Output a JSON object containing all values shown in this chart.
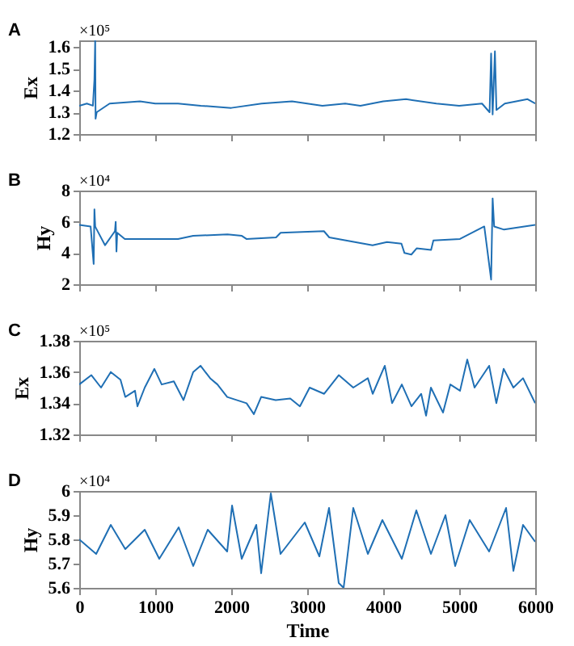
{
  "chart_data": [
    {
      "type": "line",
      "title": "A",
      "ylabel": "Ex",
      "annotations": [
        "×10⁵"
      ],
      "xlim": [
        0,
        6000
      ],
      "xticks": [
        0,
        1000,
        2000,
        3000,
        4000,
        5000,
        6000
      ],
      "ylim": [
        1.2,
        1.63
      ],
      "yticks": [
        1.2,
        1.3,
        1.4,
        1.5,
        1.6
      ],
      "grid": false,
      "legend": false,
      "tick_labels": "y",
      "x": [
        0,
        100,
        180,
        200,
        210,
        215,
        230,
        400,
        800,
        1000,
        1300,
        1600,
        2000,
        2400,
        2800,
        3200,
        3500,
        3700,
        4000,
        4300,
        4700,
        5000,
        5300,
        5400,
        5420,
        5440,
        5470,
        5490,
        5600,
        5900,
        6000
      ],
      "series": [
        {
          "color": "#1f6fb4",
          "values": [
            1.33,
            1.34,
            1.33,
            1.45,
            1.63,
            1.27,
            1.3,
            1.34,
            1.35,
            1.34,
            1.34,
            1.33,
            1.32,
            1.34,
            1.35,
            1.33,
            1.34,
            1.33,
            1.35,
            1.36,
            1.34,
            1.33,
            1.34,
            1.3,
            1.57,
            1.29,
            1.58,
            1.31,
            1.34,
            1.36,
            1.34
          ]
        }
      ]
    },
    {
      "type": "line",
      "title": "B",
      "ylabel": "Hy",
      "annotations": [
        "×10⁴"
      ],
      "xlim": [
        0,
        6000
      ],
      "xticks": [
        0,
        1000,
        2000,
        3000,
        4000,
        5000,
        6000
      ],
      "ylim": [
        2,
        8
      ],
      "yticks": [
        2,
        4,
        6,
        8
      ],
      "grid": false,
      "legend": false,
      "tick_labels": "y",
      "x": [
        0,
        150,
        190,
        200,
        210,
        220,
        340,
        470,
        480,
        490,
        500,
        600,
        1300,
        1500,
        1950,
        2140,
        2200,
        2590,
        2650,
        3220,
        3290,
        3860,
        4050,
        4240,
        4280,
        4370,
        4440,
        4630,
        4660,
        5010,
        5330,
        5420,
        5440,
        5460,
        5590,
        6000
      ],
      "series": [
        {
          "color": "#1f6fb4",
          "values": [
            5.8,
            5.7,
            3.3,
            6.8,
            5.7,
            5.6,
            4.5,
            5.4,
            6.0,
            4.1,
            5.3,
            4.9,
            4.9,
            5.1,
            5.2,
            5.1,
            4.9,
            5.0,
            5.3,
            5.4,
            5.0,
            4.5,
            4.7,
            4.6,
            4.0,
            3.9,
            4.3,
            4.2,
            4.8,
            4.9,
            5.7,
            2.3,
            7.5,
            5.7,
            5.5,
            5.8
          ]
        }
      ]
    },
    {
      "type": "line",
      "title": "C",
      "ylabel": "Ex",
      "annotations": [
        "×10⁵"
      ],
      "xlim": [
        0,
        6000
      ],
      "xticks": [
        0,
        1000,
        2000,
        3000,
        4000,
        5000,
        6000
      ],
      "ylim": [
        1.32,
        1.38
      ],
      "yticks": [
        1.32,
        1.34,
        1.36,
        1.38
      ],
      "grid": false,
      "legend": false,
      "tick_labels": "y",
      "x": [
        0,
        160,
        287,
        415,
        543,
        606,
        734,
        766,
        862,
        989,
        1085,
        1245,
        1372,
        1500,
        1596,
        1723,
        1819,
        1947,
        2202,
        2298,
        2394,
        2585,
        2777,
        2904,
        3032,
        3223,
        3415,
        3606,
        3798,
        3862,
        4021,
        4117,
        4245,
        4372,
        4500,
        4564,
        4628,
        4787,
        4883,
        5011,
        5106,
        5202,
        5394,
        5489,
        5585,
        5713,
        5840,
        6000
      ],
      "series": [
        {
          "color": "#1f6fb4",
          "values": [
            1.352,
            1.358,
            1.35,
            1.36,
            1.355,
            1.344,
            1.348,
            1.338,
            1.35,
            1.362,
            1.352,
            1.354,
            1.342,
            1.36,
            1.364,
            1.356,
            1.352,
            1.344,
            1.34,
            1.333,
            1.344,
            1.342,
            1.343,
            1.338,
            1.35,
            1.346,
            1.358,
            1.35,
            1.356,
            1.346,
            1.364,
            1.34,
            1.352,
            1.338,
            1.346,
            1.332,
            1.35,
            1.334,
            1.352,
            1.348,
            1.368,
            1.35,
            1.364,
            1.34,
            1.362,
            1.35,
            1.356,
            1.34
          ]
        }
      ]
    },
    {
      "type": "line",
      "title": "D",
      "ylabel": "Hy",
      "xlabel": "Time",
      "annotations": [
        "×10⁴"
      ],
      "xlim": [
        0,
        6000
      ],
      "xticks": [
        0,
        1000,
        2000,
        3000,
        4000,
        5000,
        6000
      ],
      "ylim": [
        5.6,
        6.0
      ],
      "yticks": [
        5.6,
        5.7,
        5.8,
        5.9,
        6
      ],
      "grid": false,
      "legend": false,
      "x": [
        0,
        223,
        415,
        606,
        862,
        1053,
        1309,
        1500,
        1691,
        1947,
        2011,
        2138,
        2330,
        2394,
        2521,
        2649,
        2968,
        3160,
        3287,
        3415,
        3479,
        3606,
        3798,
        3989,
        4245,
        4436,
        4628,
        4819,
        4947,
        5138,
        5394,
        5617,
        5713,
        5840,
        6000
      ],
      "series": [
        {
          "color": "#1f6fb4",
          "values": [
            5.8,
            5.74,
            5.86,
            5.76,
            5.84,
            5.72,
            5.85,
            5.69,
            5.84,
            5.75,
            5.94,
            5.72,
            5.86,
            5.66,
            5.99,
            5.74,
            5.87,
            5.73,
            5.93,
            5.62,
            5.6,
            5.93,
            5.74,
            5.88,
            5.72,
            5.92,
            5.74,
            5.9,
            5.69,
            5.88,
            5.75,
            5.93,
            5.67,
            5.86,
            5.79
          ]
        }
      ]
    }
  ]
}
